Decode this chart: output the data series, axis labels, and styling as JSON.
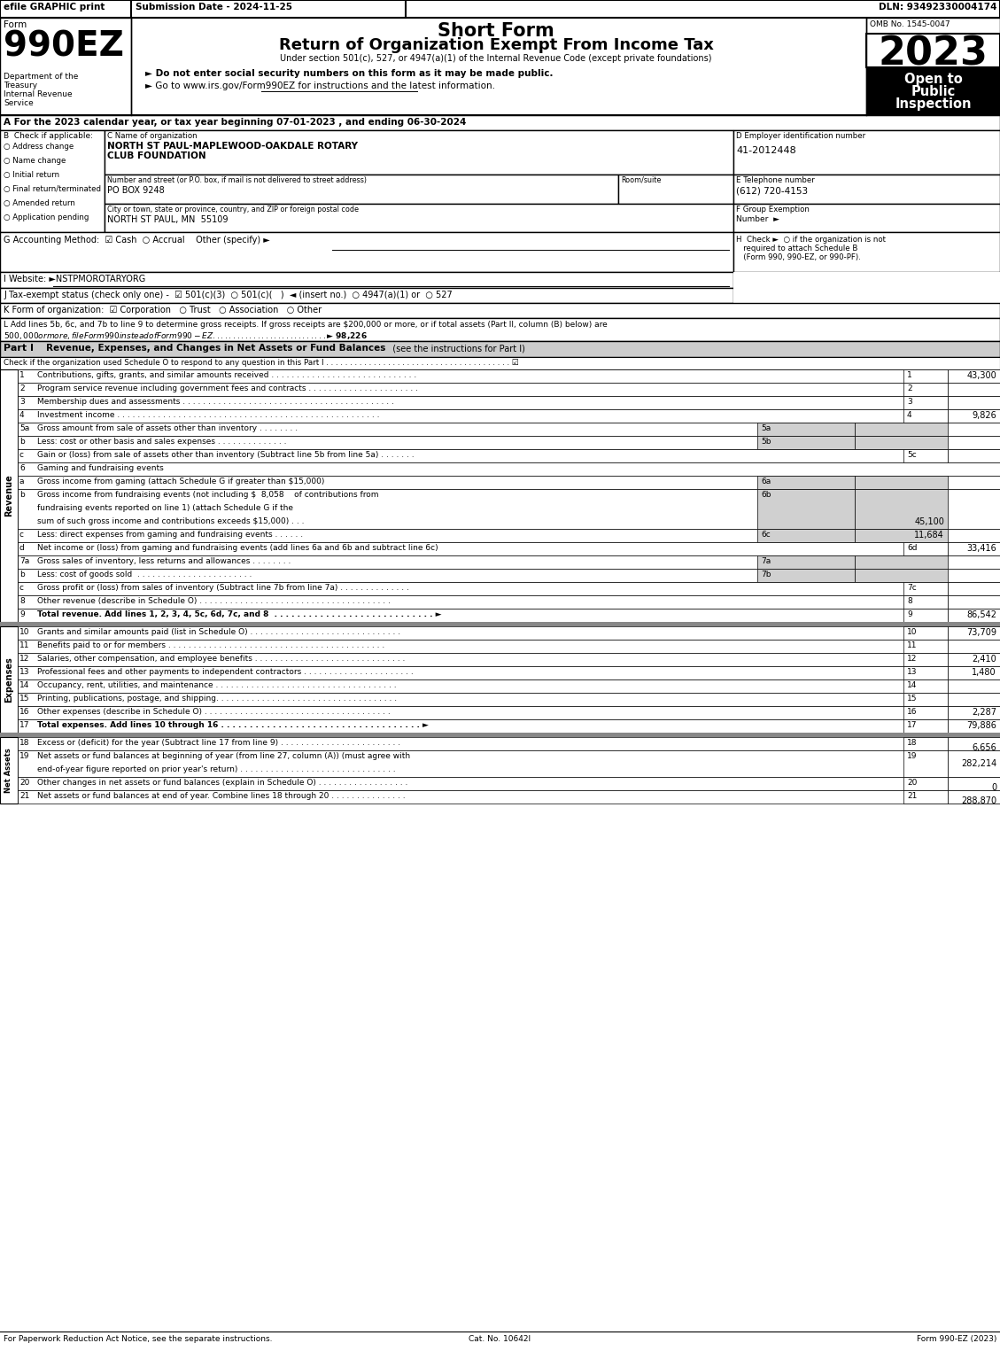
{
  "title_short_form": "Short Form",
  "title_main": "Return of Organization Exempt From Income Tax",
  "subtitle": "Under section 501(c), 527, or 4947(a)(1) of the Internal Revenue Code (except private foundations)",
  "bullet1": "► Do not enter social security numbers on this form as it may be made public.",
  "bullet2": "► Go to www.irs.gov/Form990EZ for instructions and the latest information.",
  "www_underline": "www.irs.gov/Form990EZ",
  "efile_text": "efile GRAPHIC print",
  "submission_date": "Submission Date - 2024-11-25",
  "dln": "DLN: 93492330004174",
  "form_label": "Form",
  "form_number": "990EZ",
  "dept1": "Department of the",
  "dept2": "Treasury",
  "dept3": "Internal Revenue",
  "dept4": "Service",
  "omb": "OMB No. 1545-0047",
  "year": "2023",
  "open_to": "Open to\nPublic\nInspection",
  "section_A": "A For the 2023 calendar year, or tax year beginning 07-01-2023 , and ending 06-30-2024",
  "checkboxes_B": [
    "Address change",
    "Name change",
    "Initial return",
    "Final return/terminated",
    "Amended return",
    "Application pending"
  ],
  "org_name1": "NORTH ST PAUL-MAPLEWOOD-OAKDALE ROTARY",
  "org_name2": "CLUB FOUNDATION",
  "addr_value": "PO BOX 9248",
  "city_value": "NORTH ST PAUL, MN  55109",
  "ein": "41-2012448",
  "phone": "(612) 720-4153",
  "section_G": "G Accounting Method:  ☑ Cash  ○ Accrual    Other (specify) ►",
  "section_I": "I Website: ►NSTPMOROTARYORG",
  "section_J": "J Tax-exempt status (check only one) -  ☑ 501(c)(3)  ○ 501(c)(   )  ◄ (insert no.)  ○ 4947(a)(1) or  ○ 527",
  "section_K": "K Form of organization:  ☑ Corporation   ○ Trust   ○ Association   ○ Other",
  "section_L1": "L Add lines 5b, 6c, and 7b to line 9 to determine gross receipts. If gross receipts are $200,000 or more, or if total assets (Part II, column (B) below) are",
  "section_L2": "$500,000 or more, file Form 990 instead of Form 990-EZ . . . . . . . . . . . . . . . . . . . . . . . . . . . . ►$ 98,226",
  "part_I_title": "Revenue, Expenses, and Changes in Net Assets or Fund Balances",
  "part_I_see": "(see the instructions for Part I)",
  "part_I_check": "Check if the organization used Schedule O to respond to any question in this Part I",
  "revenue_label": "Revenue",
  "expenses_label": "Expenses",
  "net_assets_label": "Net Assets",
  "lines": [
    {
      "num": "1",
      "desc": "Contributions, gifts, grants, and similar amounts received . . . . . . . . . . . . . . . . . . . . . . . . . . . . .",
      "line_num": "1",
      "value": "43,300",
      "sub": false,
      "bold": false,
      "header": false,
      "rows": 1
    },
    {
      "num": "2",
      "desc": "Program service revenue including government fees and contracts . . . . . . . . . . . . . . . . . . . . . .",
      "line_num": "2",
      "value": "",
      "sub": false,
      "bold": false,
      "header": false,
      "rows": 1
    },
    {
      "num": "3",
      "desc": "Membership dues and assessments . . . . . . . . . . . . . . . . . . . . . . . . . . . . . . . . . . . . . . . . . .",
      "line_num": "3",
      "value": "",
      "sub": false,
      "bold": false,
      "header": false,
      "rows": 1
    },
    {
      "num": "4",
      "desc": "Investment income . . . . . . . . . . . . . . . . . . . . . . . . . . . . . . . . . . . . . . . . . . . . . . . . . . . .",
      "line_num": "4",
      "value": "9,826",
      "sub": false,
      "bold": false,
      "header": false,
      "rows": 1
    },
    {
      "num": "5a",
      "desc": "Gross amount from sale of assets other than inventory . . . . . . . .",
      "line_num": "5a",
      "value": "",
      "sub": true,
      "bold": false,
      "header": false,
      "rows": 1
    },
    {
      "num": "b",
      "desc": "Less: cost or other basis and sales expenses . . . . . . . . . . . . . .",
      "line_num": "5b",
      "value": "",
      "sub": true,
      "bold": false,
      "header": false,
      "rows": 1
    },
    {
      "num": "c",
      "desc": "Gain or (loss) from sale of assets other than inventory (Subtract line 5b from line 5a) . . . . . . .",
      "line_num": "5c",
      "value": "",
      "sub": false,
      "bold": false,
      "header": false,
      "rows": 1
    },
    {
      "num": "6",
      "desc": "Gaming and fundraising events",
      "line_num": "",
      "value": "",
      "sub": false,
      "bold": false,
      "header": true,
      "rows": 1
    },
    {
      "num": "a",
      "desc": "Gross income from gaming (attach Schedule G if greater than $15,000)",
      "line_num": "6a",
      "value": "",
      "sub": true,
      "bold": false,
      "header": false,
      "rows": 1
    },
    {
      "num": "b",
      "desc": "Gross income from fundraising events (not including $  8,058    of contributions from\nfundraising events reported on line 1) (attach Schedule G if the\nsum of such gross income and contributions exceeds $15,000) . . .",
      "line_num": "6b",
      "value": "45,100",
      "sub": true,
      "bold": false,
      "header": false,
      "rows": 3
    },
    {
      "num": "c",
      "desc": "Less: direct expenses from gaming and fundraising events . . . . . .",
      "line_num": "6c",
      "value": "11,684",
      "sub": true,
      "bold": false,
      "header": false,
      "rows": 1
    },
    {
      "num": "d",
      "desc": "Net income or (loss) from gaming and fundraising events (add lines 6a and 6b and subtract line 6c)",
      "line_num": "6d",
      "value": "33,416",
      "sub": false,
      "bold": false,
      "header": false,
      "rows": 1
    },
    {
      "num": "7a",
      "desc": "Gross sales of inventory, less returns and allowances . . . . . . . .",
      "line_num": "7a",
      "value": "",
      "sub": true,
      "bold": false,
      "header": false,
      "rows": 1
    },
    {
      "num": "b",
      "desc": "Less: cost of goods sold  . . . . . . . . . . . . . . . . . . . . . . .",
      "line_num": "7b",
      "value": "",
      "sub": true,
      "bold": false,
      "header": false,
      "rows": 1
    },
    {
      "num": "c",
      "desc": "Gross profit or (loss) from sales of inventory (Subtract line 7b from line 7a) . . . . . . . . . . . . . .",
      "line_num": "7c",
      "value": "",
      "sub": false,
      "bold": false,
      "header": false,
      "rows": 1
    },
    {
      "num": "8",
      "desc": "Other revenue (describe in Schedule O) . . . . . . . . . . . . . . . . . . . . . . . . . . . . . . . . . . . . . .",
      "line_num": "8",
      "value": "",
      "sub": false,
      "bold": false,
      "header": false,
      "rows": 1
    },
    {
      "num": "9",
      "desc": "Total revenue. Add lines 1, 2, 3, 4, 5c, 6d, 7c, and 8  . . . . . . . . . . . . . . . . . . . . . . . . . . . . ►",
      "line_num": "9",
      "value": "86,542",
      "sub": false,
      "bold": true,
      "header": false,
      "rows": 1
    }
  ],
  "expense_lines": [
    {
      "num": "10",
      "desc": "Grants and similar amounts paid (list in Schedule O) . . . . . . . . . . . . . . . . . . . . . . . . . . . . . .",
      "line_num": "10",
      "value": "73,709",
      "bold": false
    },
    {
      "num": "11",
      "desc": "Benefits paid to or for members . . . . . . . . . . . . . . . . . . . . . . . . . . . . . . . . . . . . . . . . . . .",
      "line_num": "11",
      "value": "",
      "bold": false
    },
    {
      "num": "12",
      "desc": "Salaries, other compensation, and employee benefits . . . . . . . . . . . . . . . . . . . . . . . . . . . . . .",
      "line_num": "12",
      "value": "2,410",
      "bold": false
    },
    {
      "num": "13",
      "desc": "Professional fees and other payments to independent contractors . . . . . . . . . . . . . . . . . . . . . .",
      "line_num": "13",
      "value": "1,480",
      "bold": false
    },
    {
      "num": "14",
      "desc": "Occupancy, rent, utilities, and maintenance . . . . . . . . . . . . . . . . . . . . . . . . . . . . . . . . . . . .",
      "line_num": "14",
      "value": "",
      "bold": false
    },
    {
      "num": "15",
      "desc": "Printing, publications, postage, and shipping. . . . . . . . . . . . . . . . . . . . . . . . . . . . . . . . . . . .",
      "line_num": "15",
      "value": "",
      "bold": false
    },
    {
      "num": "16",
      "desc": "Other expenses (describe in Schedule O) . . . . . . . . . . . . . . . . . . . . . . . . . . . . . . . . . . . . .",
      "line_num": "16",
      "value": "2,287",
      "bold": false
    },
    {
      "num": "17",
      "desc": "Total expenses. Add lines 10 through 16 . . . . . . . . . . . . . . . . . . . . . . . . . . . . . . . . . . . ►",
      "line_num": "17",
      "value": "79,886",
      "bold": true
    }
  ],
  "net_asset_lines": [
    {
      "num": "18",
      "desc": "Excess or (deficit) for the year (Subtract line 17 from line 9) . . . . . . . . . . . . . . . . . . . . . . . .",
      "line_num": "18",
      "value": "6,656",
      "rows": 1
    },
    {
      "num": "19",
      "desc": "Net assets or fund balances at beginning of year (from line 27, column (A)) (must agree with\nend-of-year figure reported on prior year's return) . . . . . . . . . . . . . . . . . . . . . . . . . . . . . . .",
      "line_num": "19",
      "value": "282,214",
      "rows": 2
    },
    {
      "num": "20",
      "desc": "Other changes in net assets or fund balances (explain in Schedule O) . . . . . . . . . . . . . . . . . .",
      "line_num": "20",
      "value": "0",
      "rows": 1
    },
    {
      "num": "21",
      "desc": "Net assets or fund balances at end of year. Combine lines 18 through 20 . . . . . . . . . . . . . . .",
      "line_num": "21",
      "value": "288,870",
      "rows": 1
    }
  ],
  "footer": "For Paperwork Reduction Act Notice, see the separate instructions.",
  "footer_cat": "Cat. No. 10642I",
  "footer_form": "Form 990-EZ (2023)"
}
